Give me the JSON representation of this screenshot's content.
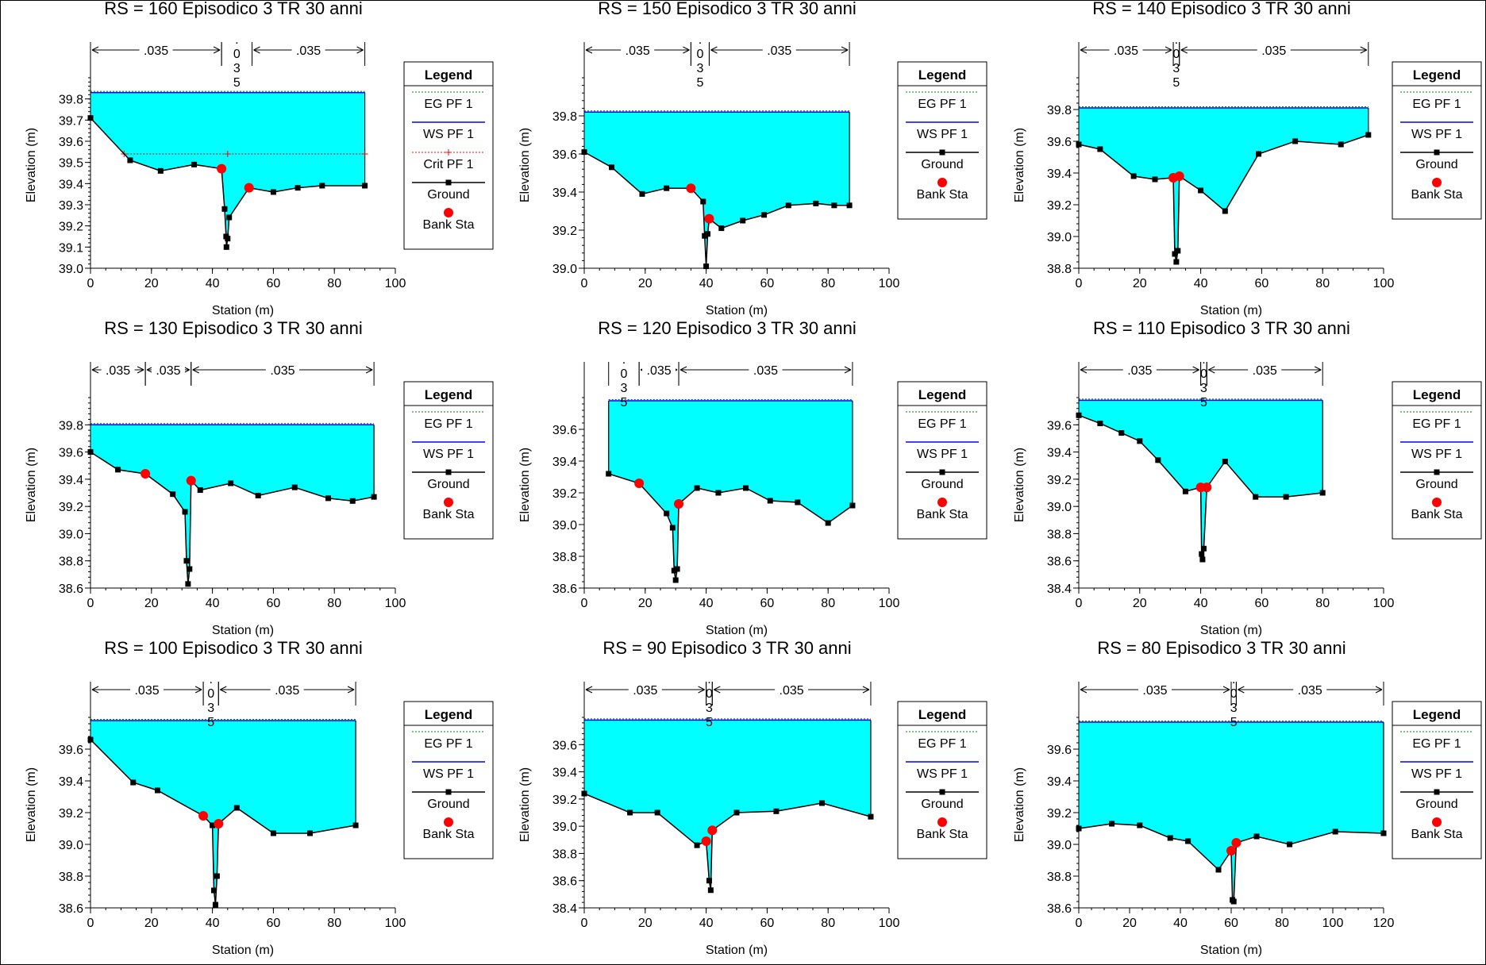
{
  "legend": {
    "title": "Legend",
    "eg": "EG PF 1",
    "ws": "WS PF 1",
    "crit": "Crit PF 1",
    "ground": "Ground",
    "bank": "Bank Sta"
  },
  "colors": {
    "water": "#00ffff",
    "ws_line": "#0000ff",
    "eg_line": "#008000",
    "crit_line": "#ff0000",
    "ground": "#000000",
    "bank": "#ff0000"
  },
  "chart_data": [
    {
      "type": "line",
      "title": "RS = 160  Episodico 3 TR 30 anni",
      "xlabel": "Station (m)",
      "ylabel": "Elevation (m)",
      "xlim": [
        0,
        100
      ],
      "ylim": [
        39.0,
        39.9
      ],
      "xticks": [
        0,
        20,
        40,
        60,
        80,
        100
      ],
      "yticks": [
        39.0,
        39.1,
        39.2,
        39.3,
        39.4,
        39.5,
        39.6,
        39.7,
        39.8
      ],
      "ground": [
        [
          0,
          39.71
        ],
        [
          13,
          39.51
        ],
        [
          23,
          39.46
        ],
        [
          34,
          39.49
        ],
        [
          43,
          39.47
        ],
        [
          44,
          39.28
        ],
        [
          44.5,
          39.15
        ],
        [
          44.6,
          39.1
        ],
        [
          45,
          39.14
        ],
        [
          45.5,
          39.24
        ],
        [
          52,
          39.38
        ],
        [
          60,
          39.36
        ],
        [
          68,
          39.38
        ],
        [
          76,
          39.39
        ],
        [
          90,
          39.39
        ]
      ],
      "banks": [
        [
          43,
          39.47
        ],
        [
          52,
          39.38
        ]
      ],
      "ws": 39.83,
      "ws_end": 90,
      "crit": 39.54,
      "crit_markers": [
        11,
        45,
        90
      ],
      "mann": [
        {
          "x1": 0,
          "x2": 43,
          "label": ".035"
        },
        {
          "x1": 43,
          "x2": 53,
          "label": "0\n3\n5"
        },
        {
          "x1": 53,
          "x2": 90,
          "label": ".035"
        }
      ],
      "legend_has_crit": true
    },
    {
      "type": "line",
      "title": "RS = 150  Episodico 3 TR 30 anni",
      "xlabel": "Station (m)",
      "ylabel": "Elevation (m)",
      "xlim": [
        0,
        100
      ],
      "ylim": [
        39.0,
        40.0
      ],
      "xticks": [
        0,
        20,
        40,
        60,
        80,
        100
      ],
      "yticks": [
        39.0,
        39.2,
        39.4,
        39.6,
        39.8
      ],
      "ground": [
        [
          0,
          39.61
        ],
        [
          9,
          39.53
        ],
        [
          19,
          39.39
        ],
        [
          27,
          39.42
        ],
        [
          35,
          39.42
        ],
        [
          39,
          39.35
        ],
        [
          39.5,
          39.17
        ],
        [
          40,
          39.01
        ],
        [
          40.5,
          39.18
        ],
        [
          41,
          39.26
        ],
        [
          45,
          39.21
        ],
        [
          52,
          39.25
        ],
        [
          59,
          39.28
        ],
        [
          67,
          39.33
        ],
        [
          76,
          39.34
        ],
        [
          82,
          39.33
        ],
        [
          87,
          39.33
        ]
      ],
      "banks": [
        [
          35,
          39.42
        ],
        [
          41,
          39.26
        ]
      ],
      "ws": 39.82,
      "ws_end": 87,
      "mann": [
        {
          "x1": 0,
          "x2": 35,
          "label": ".035"
        },
        {
          "x1": 35,
          "x2": 41,
          "label": "0\n3\n5"
        },
        {
          "x1": 41,
          "x2": 87,
          "label": ".035"
        }
      ],
      "legend_has_crit": false
    },
    {
      "type": "line",
      "title": "RS = 140  Episodico 3 TR 30 anni",
      "xlabel": "Station (m)",
      "ylabel": "Elevation (m)",
      "xlim": [
        0,
        100
      ],
      "ylim": [
        38.8,
        40.0
      ],
      "xticks": [
        0,
        20,
        40,
        60,
        80,
        100
      ],
      "yticks": [
        38.8,
        39.0,
        39.2,
        39.4,
        39.6,
        39.8
      ],
      "ground": [
        [
          0,
          39.58
        ],
        [
          7,
          39.55
        ],
        [
          18,
          39.38
        ],
        [
          25,
          39.36
        ],
        [
          31,
          39.37
        ],
        [
          31.5,
          38.89
        ],
        [
          32,
          38.84
        ],
        [
          32.5,
          38.91
        ],
        [
          33,
          39.38
        ],
        [
          40,
          39.29
        ],
        [
          48,
          39.16
        ],
        [
          59,
          39.52
        ],
        [
          71,
          39.6
        ],
        [
          86,
          39.58
        ],
        [
          95,
          39.64
        ]
      ],
      "banks": [
        [
          31,
          39.37
        ],
        [
          33,
          39.38
        ]
      ],
      "ws": 39.81,
      "ws_end": 95,
      "mann": [
        {
          "x1": 0,
          "x2": 31,
          "label": ".035"
        },
        {
          "x1": 31,
          "x2": 33,
          "label": "0\n3\n5"
        },
        {
          "x1": 33,
          "x2": 95,
          "label": ".035"
        }
      ],
      "legend_has_crit": false
    },
    {
      "type": "line",
      "title": "RS = 130  Episodico 3 TR 30 anni",
      "xlabel": "Station (m)",
      "ylabel": "Elevation (m)",
      "xlim": [
        0,
        100
      ],
      "ylim": [
        38.6,
        40.0
      ],
      "xticks": [
        0,
        20,
        40,
        60,
        80,
        100
      ],
      "yticks": [
        38.6,
        38.8,
        39.0,
        39.2,
        39.4,
        39.6,
        39.8
      ],
      "ground": [
        [
          0,
          39.6
        ],
        [
          9,
          39.47
        ],
        [
          18,
          39.44
        ],
        [
          27,
          39.29
        ],
        [
          31,
          39.16
        ],
        [
          31.5,
          38.8
        ],
        [
          32,
          38.63
        ],
        [
          32.5,
          38.74
        ],
        [
          33,
          39.39
        ],
        [
          36,
          39.32
        ],
        [
          46,
          39.37
        ],
        [
          55,
          39.28
        ],
        [
          67,
          39.34
        ],
        [
          78,
          39.26
        ],
        [
          86,
          39.24
        ],
        [
          93,
          39.27
        ]
      ],
      "banks": [
        [
          18,
          39.44
        ],
        [
          33,
          39.39
        ]
      ],
      "ws": 39.8,
      "ws_end": 93,
      "mann": [
        {
          "x1": 0,
          "x2": 18,
          "label": ".035"
        },
        {
          "x1": 18,
          "x2": 33,
          "label": ".035"
        },
        {
          "x1": 33,
          "x2": 93,
          "label": ".035"
        }
      ],
      "legend_has_crit": false
    },
    {
      "type": "line",
      "title": "RS = 120  Episodico 3 TR 30 anni",
      "xlabel": "Station (m)",
      "ylabel": "Elevation (m)",
      "xlim": [
        0,
        100
      ],
      "ylim": [
        38.6,
        39.8
      ],
      "xticks": [
        0,
        20,
        40,
        60,
        80,
        100
      ],
      "yticks": [
        38.6,
        38.8,
        39.0,
        39.2,
        39.4,
        39.6
      ],
      "ground": [
        [
          8,
          39.32
        ],
        [
          18,
          39.26
        ],
        [
          27,
          39.07
        ],
        [
          29,
          38.98
        ],
        [
          29.5,
          38.71
        ],
        [
          30,
          38.65
        ],
        [
          30.5,
          38.72
        ],
        [
          31,
          39.13
        ],
        [
          37,
          39.23
        ],
        [
          44,
          39.2
        ],
        [
          53,
          39.23
        ],
        [
          61,
          39.15
        ],
        [
          70,
          39.14
        ],
        [
          80,
          39.01
        ],
        [
          88,
          39.12
        ]
      ],
      "banks": [
        [
          18,
          39.26
        ],
        [
          31,
          39.13
        ]
      ],
      "ws": 39.78,
      "ws_start": 8,
      "ws_end": 88,
      "mann": [
        {
          "x1": 8,
          "x2": 18,
          "label": "0\n3\n5"
        },
        {
          "x1": 18,
          "x2": 31,
          "label": ".035"
        },
        {
          "x1": 31,
          "x2": 88,
          "label": ".035"
        }
      ],
      "legend_has_crit": false
    },
    {
      "type": "line",
      "title": "RS = 110  Episodico 3 TR 30 anni",
      "xlabel": "Station (m)",
      "ylabel": "Elevation (m)",
      "xlim": [
        0,
        100
      ],
      "ylim": [
        38.4,
        39.8
      ],
      "xticks": [
        0,
        20,
        40,
        60,
        80,
        100
      ],
      "yticks": [
        38.4,
        38.6,
        38.8,
        39.0,
        39.2,
        39.4,
        39.6
      ],
      "ground": [
        [
          0,
          39.67
        ],
        [
          7,
          39.61
        ],
        [
          14,
          39.54
        ],
        [
          20,
          39.48
        ],
        [
          26,
          39.34
        ],
        [
          35,
          39.11
        ],
        [
          40,
          39.14
        ],
        [
          40.3,
          38.65
        ],
        [
          40.6,
          38.61
        ],
        [
          41,
          38.69
        ],
        [
          42,
          39.14
        ],
        [
          48,
          39.33
        ],
        [
          58,
          39.07
        ],
        [
          68,
          39.07
        ],
        [
          80,
          39.1
        ]
      ],
      "banks": [
        [
          40,
          39.14
        ],
        [
          42,
          39.14
        ]
      ],
      "ws": 39.78,
      "ws_end": 80,
      "mann": [
        {
          "x1": 0,
          "x2": 40,
          "label": ".035"
        },
        {
          "x1": 40,
          "x2": 42,
          "label": "0\n3\n5"
        },
        {
          "x1": 42,
          "x2": 80,
          "label": ".035"
        }
      ],
      "legend_has_crit": false
    },
    {
      "type": "line",
      "title": "RS = 100  Episodico 3 TR 30 anni",
      "xlabel": "Station (m)",
      "ylabel": "Elevation (m)",
      "xlim": [
        0,
        100
      ],
      "ylim": [
        38.6,
        39.8
      ],
      "xticks": [
        0,
        20,
        40,
        60,
        80,
        100
      ],
      "yticks": [
        38.6,
        38.8,
        39.0,
        39.2,
        39.4,
        39.6
      ],
      "ground": [
        [
          0,
          39.66
        ],
        [
          14,
          39.39
        ],
        [
          22,
          39.34
        ],
        [
          37,
          39.18
        ],
        [
          40,
          39.12
        ],
        [
          40.5,
          38.71
        ],
        [
          41,
          38.62
        ],
        [
          41.5,
          38.8
        ],
        [
          42,
          39.13
        ],
        [
          48,
          39.23
        ],
        [
          60,
          39.07
        ],
        [
          72,
          39.07
        ],
        [
          87,
          39.12
        ]
      ],
      "banks": [
        [
          37,
          39.18
        ],
        [
          42,
          39.13
        ]
      ],
      "ws": 39.78,
      "ws_end": 87,
      "mann": [
        {
          "x1": 0,
          "x2": 37,
          "label": ".035"
        },
        {
          "x1": 37,
          "x2": 42,
          "label": "0\n3\n5"
        },
        {
          "x1": 42,
          "x2": 87,
          "label": ".035"
        }
      ],
      "legend_has_crit": false
    },
    {
      "type": "line",
      "title": "RS = 90  Episodico 3 TR 30 anni",
      "xlabel": "Station (m)",
      "ylabel": "Elevation (m)",
      "xlim": [
        0,
        100
      ],
      "ylim": [
        38.4,
        39.8
      ],
      "xticks": [
        0,
        20,
        40,
        60,
        80,
        100
      ],
      "yticks": [
        38.4,
        38.6,
        38.8,
        39.0,
        39.2,
        39.4,
        39.6
      ],
      "ground": [
        [
          0,
          39.24
        ],
        [
          15,
          39.1
        ],
        [
          24,
          39.1
        ],
        [
          37,
          38.86
        ],
        [
          40,
          38.89
        ],
        [
          41,
          38.6
        ],
        [
          41.5,
          38.53
        ],
        [
          42,
          38.97
        ],
        [
          50,
          39.1
        ],
        [
          63,
          39.11
        ],
        [
          78,
          39.17
        ],
        [
          94,
          39.07
        ]
      ],
      "banks": [
        [
          40,
          38.89
        ],
        [
          42,
          38.97
        ]
      ],
      "ws": 39.78,
      "ws_end": 94,
      "mann": [
        {
          "x1": 0,
          "x2": 40,
          "label": ".035"
        },
        {
          "x1": 40,
          "x2": 42,
          "label": "0\n3\n5"
        },
        {
          "x1": 42,
          "x2": 94,
          "label": ".035"
        }
      ],
      "legend_has_crit": false
    },
    {
      "type": "line",
      "title": "RS = 80  Episodico 3 TR 30 anni",
      "xlabel": "Station (m)",
      "ylabel": "Elevation (m)",
      "xlim": [
        0,
        120
      ],
      "ylim": [
        38.6,
        39.8
      ],
      "xticks": [
        0,
        20,
        40,
        60,
        80,
        100,
        120
      ],
      "yticks": [
        38.6,
        38.8,
        39.0,
        39.2,
        39.4,
        39.6
      ],
      "ground": [
        [
          0,
          39.1
        ],
        [
          13,
          39.13
        ],
        [
          24,
          39.12
        ],
        [
          36,
          39.04
        ],
        [
          43,
          39.02
        ],
        [
          55,
          38.84
        ],
        [
          60,
          38.96
        ],
        [
          60.5,
          38.65
        ],
        [
          61,
          38.64
        ],
        [
          62,
          39.01
        ],
        [
          70,
          39.05
        ],
        [
          83,
          39.0
        ],
        [
          101,
          39.08
        ],
        [
          120,
          39.07
        ]
      ],
      "banks": [
        [
          60,
          38.96
        ],
        [
          62,
          39.01
        ]
      ],
      "ws": 39.77,
      "ws_end": 120,
      "mann": [
        {
          "x1": 0,
          "x2": 60,
          "label": ".035"
        },
        {
          "x1": 60,
          "x2": 62,
          "label": "0\n3\n5"
        },
        {
          "x1": 62,
          "x2": 120,
          "label": ".035"
        }
      ],
      "legend_has_crit": false
    }
  ]
}
